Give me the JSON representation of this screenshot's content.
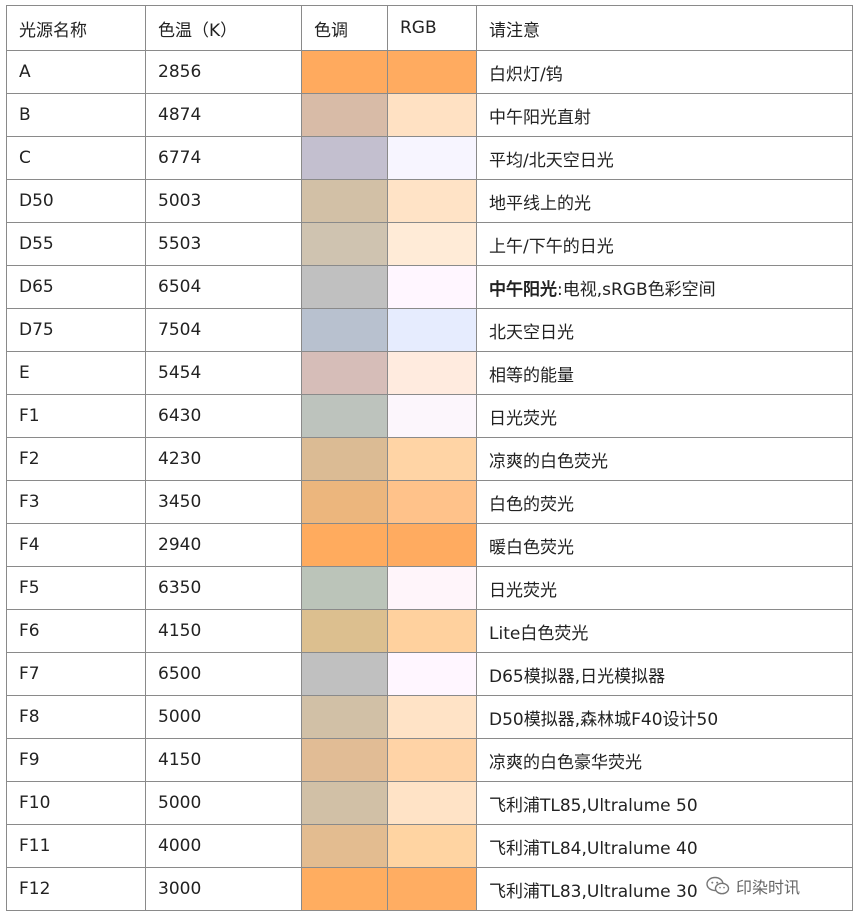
{
  "headers": [
    "光源名称",
    "色温（K）",
    "色调",
    "RGB",
    "请注意"
  ],
  "rows": [
    {
      "name": "A",
      "temp": "2856",
      "tone": "#ffaa5e",
      "rgb": "#ffab60",
      "note": "白炽灯/钨"
    },
    {
      "name": "B",
      "temp": "4874",
      "tone": "#d8bba7",
      "rgb": "#ffe1c3",
      "note": "中午阳光直射"
    },
    {
      "name": "C",
      "temp": "6774",
      "tone": "#c3bfcf",
      "rgb": "#f7f5ff",
      "note": "平均/北天空日光"
    },
    {
      "name": "D50",
      "temp": "5003",
      "tone": "#d2c0a6",
      "rgb": "#ffe3c6",
      "note": "地平线上的光"
    },
    {
      "name": "D55",
      "temp": "5503",
      "tone": "#cfc3b0",
      "rgb": "#ffebd7",
      "note": "上午/下午的日光"
    },
    {
      "name": "D65",
      "temp": "6504",
      "tone": "#c0c0c0",
      "rgb": "#fff6ff",
      "note_bold": "中午阳光",
      "note": ":电视,sRGB色彩空间"
    },
    {
      "name": "D75",
      "temp": "7504",
      "tone": "#b8c1cf",
      "rgb": "#e6ecfe",
      "note": "北天空日光"
    },
    {
      "name": "E",
      "temp": "5454",
      "tone": "#d6bdb8",
      "rgb": "#ffebdf",
      "note": "相等的能量"
    },
    {
      "name": "F1",
      "temp": "6430",
      "tone": "#bdc3bd",
      "rgb": "#fcf6fc",
      "note": "日光荧光"
    },
    {
      "name": "F2",
      "temp": "4230",
      "tone": "#dbbb94",
      "rgb": "#ffd4a5",
      "note": "凉爽的白色荧光"
    },
    {
      "name": "F3",
      "temp": "3450",
      "tone": "#ecb67d",
      "rgb": "#ffc28a",
      "note": "白色的荧光"
    },
    {
      "name": "F4",
      "temp": "2940",
      "tone": "#ffab5e",
      "rgb": "#ffab60",
      "note": "暖白色荧光"
    },
    {
      "name": "F5",
      "temp": "6350",
      "tone": "#bbc4b9",
      "rgb": "#fff5fa",
      "note": "日光荧光"
    },
    {
      "name": "F6",
      "temp": "4150",
      "tone": "#dcbf8f",
      "rgb": "#ffd19e",
      "note": "Lite白色荧光"
    },
    {
      "name": "F7",
      "temp": "6500",
      "tone": "#c0c0c0",
      "rgb": "#fff6ff",
      "note": "D65模拟器,日光模拟器"
    },
    {
      "name": "F8",
      "temp": "5000",
      "tone": "#d1c0a6",
      "rgb": "#ffe3c6",
      "note": "D50模拟器,森林城F40设计50"
    },
    {
      "name": "F9",
      "temp": "4150",
      "tone": "#e1bc95",
      "rgb": "#ffd3a6",
      "note": "凉爽的白色豪华荧光"
    },
    {
      "name": "F10",
      "temp": "5000",
      "tone": "#d1c0a6",
      "rgb": "#ffe3c6",
      "note": "飞利浦TL85,Ultralume 50"
    },
    {
      "name": "F11",
      "temp": "4000",
      "tone": "#e3bc90",
      "rgb": "#ffd4a2",
      "note": "飞利浦TL84,Ultralume 40"
    },
    {
      "name": "F12",
      "temp": "3000",
      "tone": "#ffad60",
      "rgb": "#ffad62",
      "note": "飞利浦TL83,Ultralume 30"
    }
  ],
  "watermark": {
    "text": "印染时讯",
    "icon": "wechat-icon"
  },
  "colors": {
    "border": "#8a8a8a",
    "text": "#222222"
  }
}
